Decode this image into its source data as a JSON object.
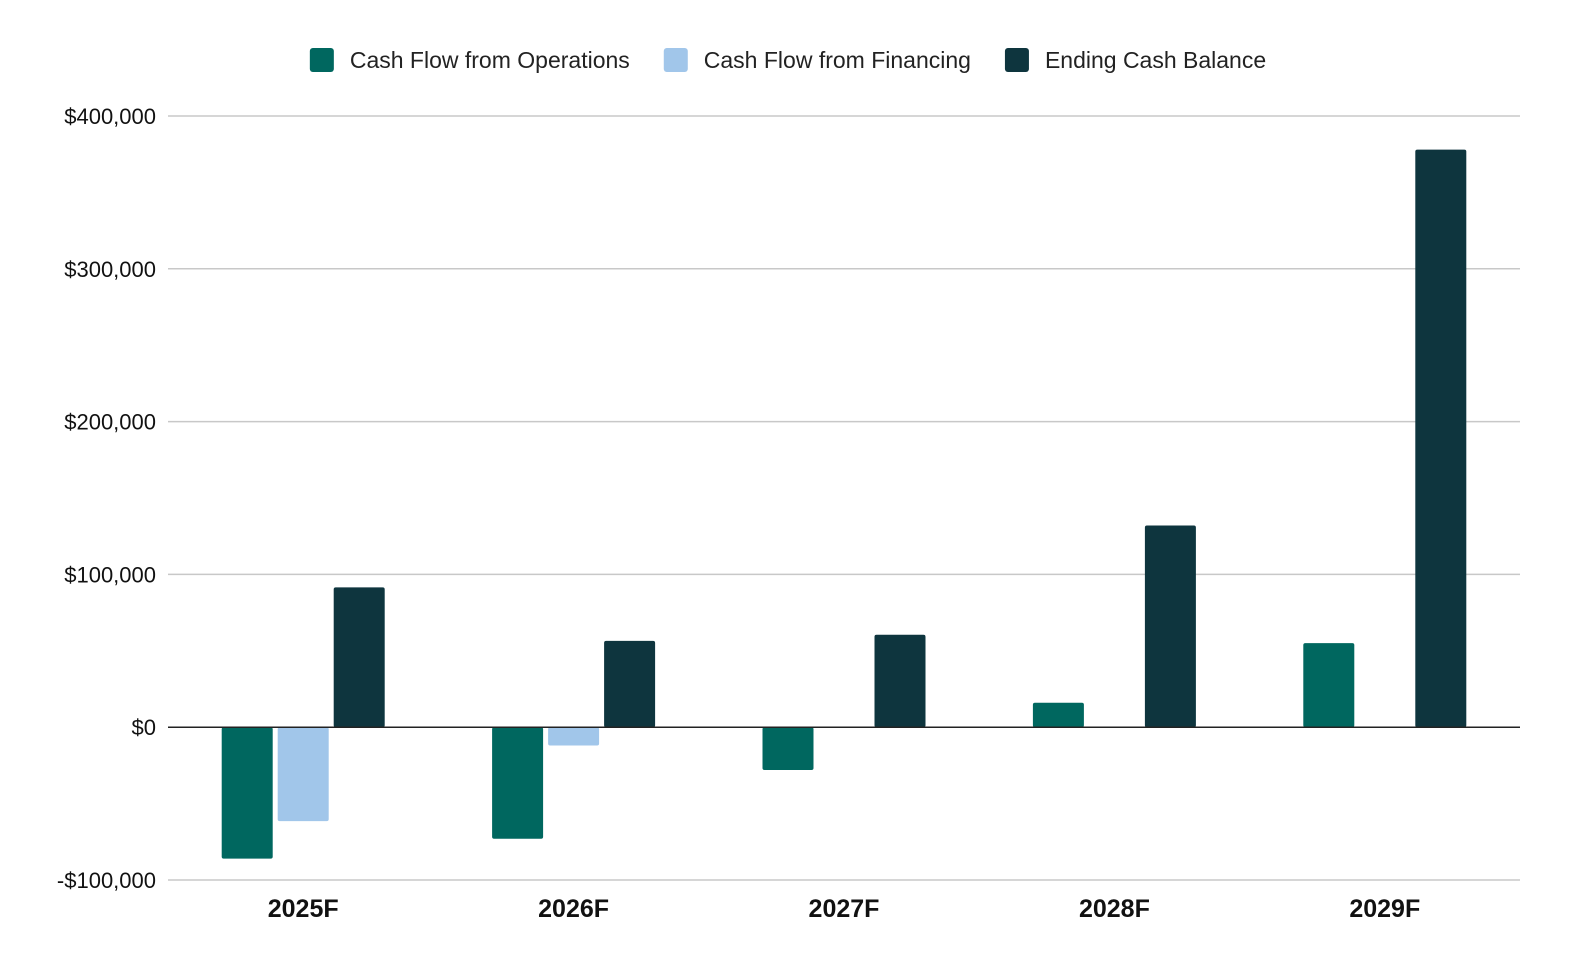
{
  "chart_data": {
    "type": "bar",
    "title": "",
    "xlabel": "",
    "ylabel": "",
    "categories": [
      "2025F",
      "2026F",
      "2027F",
      "2028F",
      "2029F"
    ],
    "series": [
      {
        "name": "Cash Flow from Operations",
        "color": "#00675f",
        "values": [
          -86000,
          -73000,
          -28000,
          16000,
          55000
        ]
      },
      {
        "name": "Cash Flow from Financing",
        "color": "#a1c6ea",
        "values": [
          -61500,
          -12000,
          0,
          0,
          0
        ]
      },
      {
        "name": "Ending Cash Balance",
        "color": "#0e353e",
        "values": [
          91500,
          56500,
          60500,
          132000,
          378000
        ]
      }
    ],
    "ylim": [
      -100000,
      400000
    ],
    "yticks": [
      400000,
      300000,
      200000,
      100000,
      0,
      -100000
    ],
    "ytick_labels": [
      "$400,000",
      "$300,000",
      "$200,000",
      "$100,000",
      "$0",
      "-$100,000"
    ],
    "grid": true,
    "legend_position": "top"
  }
}
